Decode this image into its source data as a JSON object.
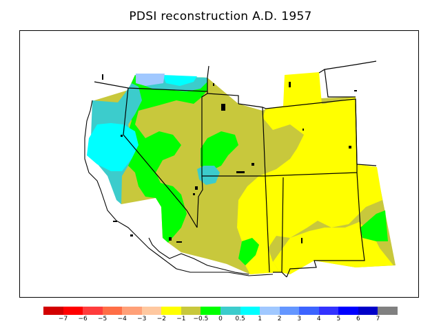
{
  "title": "PDSI reconstruction A.D. 1957",
  "legend": {
    "colors": [
      "#d20000",
      "#ff0000",
      "#ff3c3c",
      "#ff6e46",
      "#ffa078",
      "#ffc8a0",
      "#ffff00",
      "#c8c83c",
      "#00ff00",
      "#3ccccc",
      "#00ffff",
      "#a0c8ff",
      "#6496ff",
      "#3c64ff",
      "#3232ff",
      "#0000ff",
      "#0000c8",
      "#808080"
    ],
    "ticks": [
      "−7",
      "−6",
      "−5",
      "−4",
      "−3",
      "−2",
      "−1",
      "−0.5",
      "0",
      "0.5",
      "1",
      "2",
      "3",
      "4",
      "5",
      "6",
      "7"
    ]
  },
  "palette": {
    "dry_yellow": "#ffff00",
    "olive": "#c8c83c",
    "green": "#00ff00",
    "teal": "#3ccccc",
    "cyan": "#00ffff",
    "light_blue": "#a0c8ff"
  }
}
